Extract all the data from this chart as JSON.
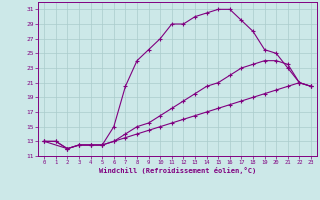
{
  "xlabel": "Windchill (Refroidissement éolien,°C)",
  "bg_color": "#cce8e8",
  "line_color": "#800080",
  "grid_color": "#aacccc",
  "xlim": [
    -0.5,
    23.5
  ],
  "ylim": [
    11,
    32
  ],
  "xticks": [
    0,
    1,
    2,
    3,
    4,
    5,
    6,
    7,
    8,
    9,
    10,
    11,
    12,
    13,
    14,
    15,
    16,
    17,
    18,
    19,
    20,
    21,
    22,
    23
  ],
  "yticks": [
    11,
    13,
    15,
    17,
    19,
    21,
    23,
    25,
    27,
    29,
    31
  ],
  "curve1_x": [
    0,
    1,
    2,
    3,
    4,
    5,
    6,
    7,
    8,
    9,
    10,
    11,
    12,
    13,
    14,
    15,
    16,
    17,
    18,
    19,
    20,
    21,
    22,
    23
  ],
  "curve1_y": [
    13,
    13,
    12,
    12.5,
    12.5,
    12.5,
    15,
    20.5,
    24,
    25.5,
    27,
    29,
    29,
    30,
    30.5,
    31,
    31,
    29.5,
    28,
    25.5,
    25,
    23,
    21,
    20.5
  ],
  "curve2_x": [
    0,
    2,
    3,
    4,
    5,
    6,
    7,
    8,
    9,
    10,
    11,
    12,
    13,
    14,
    15,
    16,
    17,
    18,
    19,
    20,
    21,
    22,
    23
  ],
  "curve2_y": [
    13,
    12,
    12.5,
    12.5,
    12.5,
    13,
    14,
    15,
    15.5,
    16.5,
    17.5,
    18.5,
    19.5,
    20.5,
    21,
    22,
    23,
    23.5,
    24,
    24,
    23.5,
    21,
    20.5
  ],
  "curve3_x": [
    0,
    1,
    2,
    3,
    4,
    5,
    6,
    7,
    8,
    9,
    10,
    11,
    12,
    13,
    14,
    15,
    16,
    17,
    18,
    19,
    20,
    21,
    22,
    23
  ],
  "curve3_y": [
    13,
    13,
    12,
    12.5,
    12.5,
    12.5,
    13,
    13.5,
    14,
    14.5,
    15,
    15.5,
    16,
    16.5,
    17,
    17.5,
    18,
    18.5,
    19,
    19.5,
    20,
    20.5,
    21,
    20.5
  ],
  "marker": "+",
  "marker_size": 3,
  "lw": 0.8
}
